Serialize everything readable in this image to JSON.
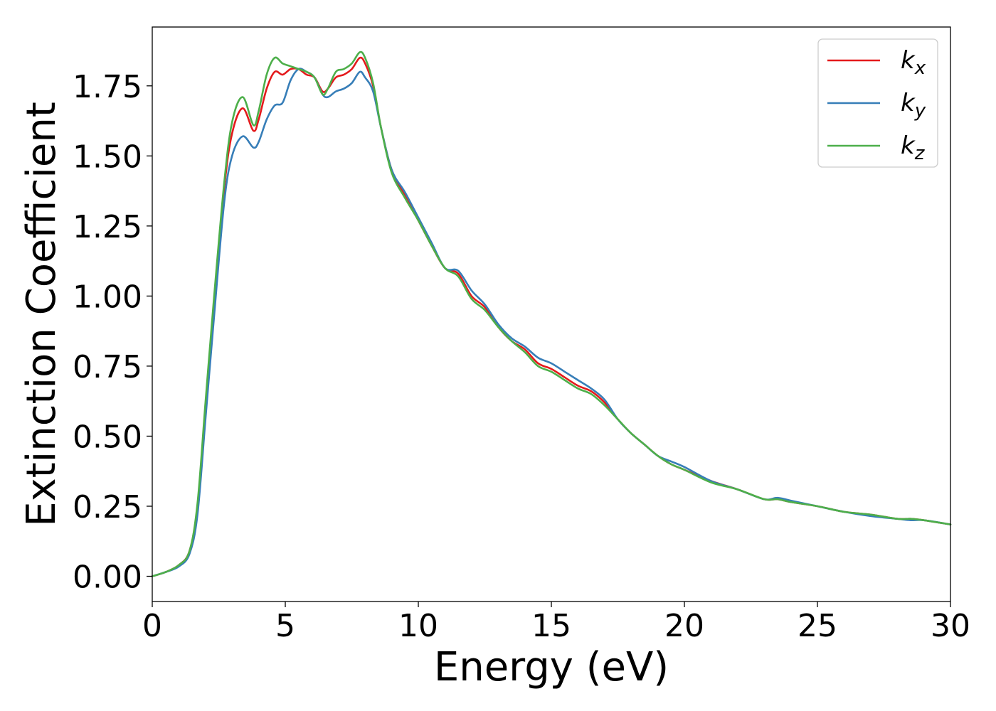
{
  "chart_data": {
    "type": "line",
    "title": "",
    "xlabel": "Energy (eV)",
    "ylabel": "Extinction Coefficient",
    "xlim": [
      0,
      30
    ],
    "ylim": [
      -0.09,
      1.96
    ],
    "xticks": [
      0,
      5,
      10,
      15,
      20,
      25,
      30
    ],
    "xtick_labels": [
      "0",
      "5",
      "10",
      "15",
      "20",
      "25",
      "30"
    ],
    "yticks": [
      0.0,
      0.25,
      0.5,
      0.75,
      1.0,
      1.25,
      1.5,
      1.75
    ],
    "ytick_labels": [
      "0.00",
      "0.25",
      "0.50",
      "0.75",
      "1.00",
      "1.25",
      "1.50",
      "1.75"
    ],
    "grid": false,
    "legend_position": "top-right",
    "series": [
      {
        "name": "k_x",
        "label_base": "k",
        "label_sub": "x",
        "color": "#e41a1c",
        "x": [
          0,
          0.5,
          1.0,
          1.4,
          1.7,
          2.0,
          2.3,
          2.7,
          3.0,
          3.4,
          3.8,
          4.0,
          4.3,
          4.6,
          4.9,
          5.2,
          5.5,
          5.8,
          6.1,
          6.4,
          6.6,
          6.9,
          7.2,
          7.5,
          7.8,
          8.0,
          8.3,
          8.6,
          9.0,
          9.5,
          10.0,
          10.5,
          11.0,
          11.5,
          12.0,
          12.5,
          13.0,
          13.5,
          14.0,
          14.5,
          15.0,
          15.5,
          16.0,
          16.5,
          17.0,
          17.5,
          18.0,
          18.5,
          19.0,
          19.5,
          20.0,
          21.0,
          22.0,
          23.0,
          23.5,
          24.0,
          25.0,
          26.0,
          27.0,
          28.0,
          28.5,
          29.0,
          30.0
        ],
        "y": [
          0.0,
          0.015,
          0.04,
          0.09,
          0.25,
          0.6,
          0.95,
          1.38,
          1.58,
          1.67,
          1.59,
          1.63,
          1.74,
          1.8,
          1.79,
          1.81,
          1.81,
          1.79,
          1.78,
          1.73,
          1.74,
          1.78,
          1.79,
          1.81,
          1.85,
          1.83,
          1.75,
          1.6,
          1.45,
          1.36,
          1.27,
          1.18,
          1.1,
          1.08,
          1.0,
          0.96,
          0.89,
          0.84,
          0.81,
          0.76,
          0.74,
          0.71,
          0.68,
          0.66,
          0.62,
          0.56,
          0.51,
          0.47,
          0.43,
          0.4,
          0.38,
          0.34,
          0.31,
          0.275,
          0.275,
          0.265,
          0.25,
          0.23,
          0.22,
          0.205,
          0.205,
          0.2,
          0.185
        ]
      },
      {
        "name": "k_y",
        "label_base": "k",
        "label_sub": "y",
        "color": "#377eb8",
        "x": [
          0,
          0.5,
          1.0,
          1.4,
          1.7,
          2.0,
          2.3,
          2.7,
          3.0,
          3.4,
          3.8,
          4.0,
          4.3,
          4.6,
          4.9,
          5.2,
          5.5,
          5.8,
          6.1,
          6.4,
          6.6,
          6.9,
          7.2,
          7.5,
          7.8,
          8.0,
          8.3,
          8.6,
          9.0,
          9.5,
          10.0,
          10.5,
          11.0,
          11.5,
          12.0,
          12.5,
          13.0,
          13.5,
          14.0,
          14.5,
          15.0,
          15.5,
          16.0,
          16.5,
          17.0,
          17.5,
          18.0,
          18.5,
          19.0,
          19.5,
          20.0,
          21.0,
          22.0,
          23.0,
          23.5,
          24.0,
          25.0,
          26.0,
          27.0,
          28.0,
          28.5,
          29.0,
          30.0
        ],
        "y": [
          0.0,
          0.015,
          0.035,
          0.08,
          0.22,
          0.56,
          0.9,
          1.33,
          1.5,
          1.57,
          1.53,
          1.55,
          1.63,
          1.68,
          1.69,
          1.77,
          1.81,
          1.8,
          1.78,
          1.72,
          1.71,
          1.73,
          1.74,
          1.76,
          1.8,
          1.78,
          1.73,
          1.6,
          1.45,
          1.37,
          1.28,
          1.19,
          1.1,
          1.09,
          1.02,
          0.97,
          0.9,
          0.85,
          0.82,
          0.78,
          0.76,
          0.73,
          0.7,
          0.67,
          0.63,
          0.56,
          0.51,
          0.47,
          0.43,
          0.41,
          0.39,
          0.34,
          0.31,
          0.275,
          0.28,
          0.27,
          0.25,
          0.23,
          0.215,
          0.205,
          0.2,
          0.2,
          0.185
        ]
      },
      {
        "name": "k_z",
        "label_base": "k",
        "label_sub": "z",
        "color": "#4daf4a",
        "x": [
          0,
          0.5,
          1.0,
          1.4,
          1.7,
          2.0,
          2.3,
          2.7,
          3.0,
          3.4,
          3.8,
          4.0,
          4.3,
          4.6,
          4.9,
          5.2,
          5.5,
          5.8,
          6.1,
          6.4,
          6.6,
          6.9,
          7.2,
          7.5,
          7.8,
          8.0,
          8.3,
          8.6,
          9.0,
          9.5,
          10.0,
          10.5,
          11.0,
          11.5,
          12.0,
          12.5,
          13.0,
          13.5,
          14.0,
          14.5,
          15.0,
          15.5,
          16.0,
          16.5,
          17.0,
          17.5,
          18.0,
          18.5,
          19.0,
          19.5,
          20.0,
          21.0,
          22.0,
          23.0,
          23.5,
          24.0,
          25.0,
          26.0,
          27.0,
          28.0,
          28.5,
          29.0,
          30.0
        ],
        "y": [
          0.0,
          0.015,
          0.04,
          0.09,
          0.26,
          0.62,
          0.97,
          1.4,
          1.62,
          1.71,
          1.61,
          1.66,
          1.79,
          1.85,
          1.83,
          1.82,
          1.81,
          1.8,
          1.78,
          1.72,
          1.74,
          1.8,
          1.81,
          1.83,
          1.87,
          1.85,
          1.76,
          1.6,
          1.44,
          1.35,
          1.27,
          1.18,
          1.1,
          1.07,
          0.99,
          0.95,
          0.89,
          0.84,
          0.8,
          0.75,
          0.73,
          0.7,
          0.67,
          0.65,
          0.61,
          0.56,
          0.51,
          0.47,
          0.43,
          0.4,
          0.38,
          0.335,
          0.31,
          0.275,
          0.275,
          0.265,
          0.25,
          0.23,
          0.22,
          0.205,
          0.205,
          0.2,
          0.185
        ]
      }
    ]
  }
}
